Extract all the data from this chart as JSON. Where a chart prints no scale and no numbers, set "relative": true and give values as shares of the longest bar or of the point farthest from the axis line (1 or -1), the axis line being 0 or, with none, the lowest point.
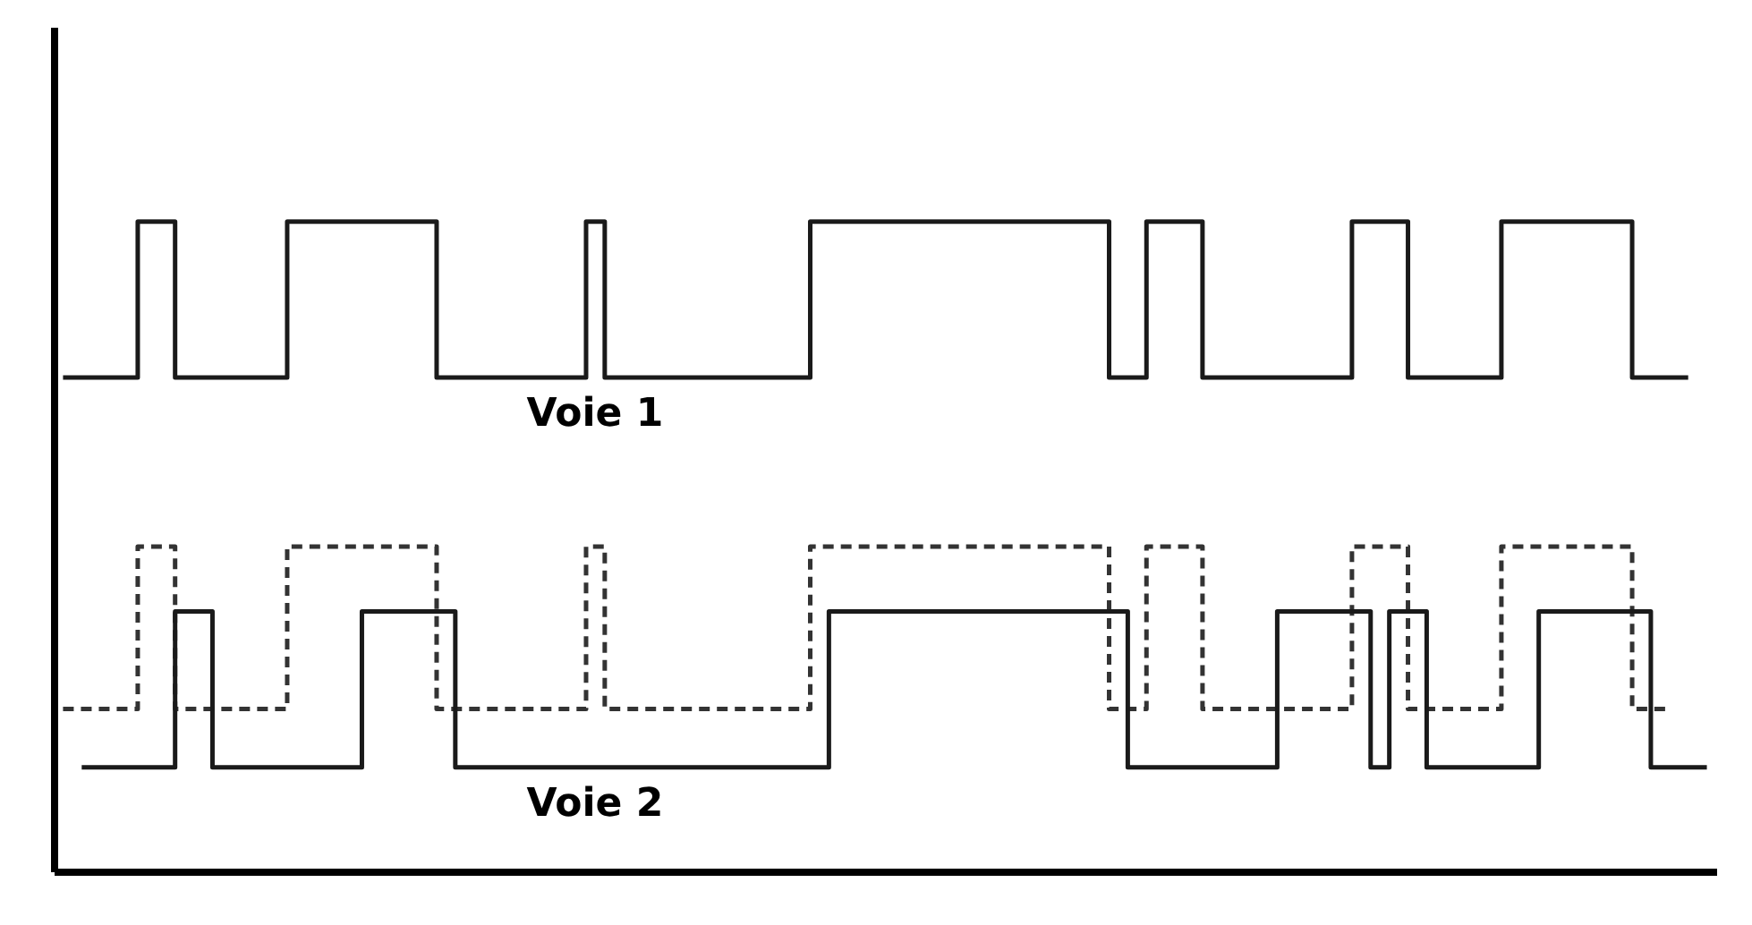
{
  "chart_data": {
    "type": "step",
    "relative": true,
    "grid": false,
    "legend": false,
    "tick_labels": false,
    "categories": [
      null,
      null,
      null,
      null,
      null,
      null,
      null,
      null,
      null,
      null,
      null,
      null,
      null,
      null,
      null,
      null,
      null,
      null,
      null,
      null,
      null,
      null,
      null,
      null,
      null,
      null,
      null,
      null,
      null,
      null,
      null,
      null,
      null,
      null,
      null,
      null,
      null,
      null,
      null,
      null,
      null,
      null,
      null,
      null,
      null,
      null,
      null,
      null,
      null,
      null,
      null,
      null,
      null,
      null,
      null,
      null,
      null,
      null,
      null,
      null,
      null,
      null,
      null,
      null,
      null,
      null,
      null,
      null,
      null,
      null,
      null,
      null,
      null,
      null,
      null,
      null,
      null,
      null,
      null,
      null,
      null,
      null,
      null,
      null,
      null,
      null,
      null,
      null,
      null
    ],
    "series": [
      {
        "name": "Voie 1",
        "color": "#1a1a1a",
        "line_style": "solid",
        "values": [
          0.76,
          0.76,
          0.76,
          0.76,
          1,
          1,
          0.76,
          0.76,
          0.76,
          0.76,
          0.76,
          0.76,
          1,
          1,
          1,
          1,
          1,
          1,
          1,
          1,
          0.76,
          0.76,
          0.76,
          0.76,
          0.76,
          0.76,
          0.76,
          0.76,
          1,
          0.76,
          0.76,
          0.76,
          0.76,
          0.76,
          0.76,
          0.76,
          0.76,
          0.76,
          0.76,
          0.76,
          1,
          1,
          1,
          1,
          1,
          1,
          1,
          1,
          1,
          1,
          1,
          1,
          1,
          1,
          1,
          1,
          0.76,
          0.76,
          1,
          1,
          1,
          0.76,
          0.76,
          0.76,
          0.76,
          0.76,
          0.76,
          0.76,
          0.76,
          1,
          1,
          1,
          0.76,
          0.76,
          0.76,
          0.76,
          0.76,
          1,
          1,
          1,
          1,
          1,
          1,
          1,
          0.76,
          0.76,
          0.76,
          0.76,
          null
        ]
      },
      {
        "color": "#333333",
        "line_style": "dashed",
        "values": [
          0.25,
          0.25,
          0.25,
          0.25,
          0.5,
          0.5,
          0.25,
          0.25,
          0.25,
          0.25,
          0.25,
          0.25,
          0.5,
          0.5,
          0.5,
          0.5,
          0.5,
          0.5,
          0.5,
          0.5,
          0.25,
          0.25,
          0.25,
          0.25,
          0.25,
          0.25,
          0.25,
          0.25,
          0.5,
          0.25,
          0.25,
          0.25,
          0.25,
          0.25,
          0.25,
          0.25,
          0.25,
          0.25,
          0.25,
          0.25,
          0.5,
          0.5,
          0.5,
          0.5,
          0.5,
          0.5,
          0.5,
          0.5,
          0.5,
          0.5,
          0.5,
          0.5,
          0.5,
          0.5,
          0.5,
          0.5,
          0.25,
          0.25,
          0.5,
          0.5,
          0.5,
          0.25,
          0.25,
          0.25,
          0.25,
          0.25,
          0.25,
          0.25,
          0.25,
          0.5,
          0.5,
          0.5,
          0.25,
          0.25,
          0.25,
          0.25,
          0.25,
          0.5,
          0.5,
          0.5,
          0.5,
          0.5,
          0.5,
          0.5,
          0.25,
          0.25,
          0.25,
          null,
          null
        ]
      },
      {
        "name": "Voie 2",
        "color": "#1a1a1a",
        "line_style": "solid",
        "values": [
          null,
          0.16,
          0.16,
          0.16,
          0.16,
          0.16,
          0.4,
          0.4,
          0.16,
          0.16,
          0.16,
          0.16,
          0.16,
          0.16,
          0.16,
          0.16,
          0.4,
          0.4,
          0.4,
          0.4,
          0.4,
          0.16,
          0.16,
          0.16,
          0.16,
          0.16,
          0.16,
          0.16,
          0.16,
          0.16,
          0.16,
          0.16,
          0.16,
          0.16,
          0.16,
          0.16,
          0.16,
          0.16,
          0.16,
          0.16,
          0.16,
          0.4,
          0.4,
          0.4,
          0.4,
          0.4,
          0.4,
          0.4,
          0.4,
          0.4,
          0.4,
          0.4,
          0.4,
          0.4,
          0.4,
          0.4,
          0.4,
          0.16,
          0.16,
          0.16,
          0.16,
          0.16,
          0.16,
          0.16,
          0.16,
          0.4,
          0.4,
          0.4,
          0.4,
          0.4,
          0.16,
          0.4,
          0.4,
          0.16,
          0.16,
          0.16,
          0.16,
          0.16,
          0.16,
          0.4,
          0.4,
          0.4,
          0.4,
          0.4,
          0.4,
          0.16,
          0.16,
          0.16,
          0.16
        ]
      }
    ]
  }
}
